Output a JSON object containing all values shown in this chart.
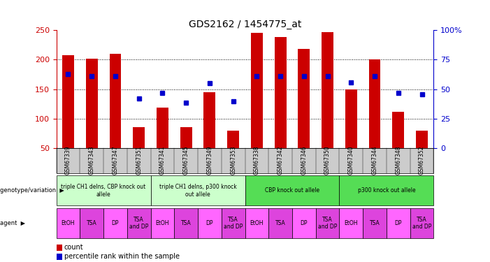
{
  "title": "GDS2162 / 1454775_at",
  "samples": [
    "GSM67339",
    "GSM67343",
    "GSM67347",
    "GSM67351",
    "GSM67341",
    "GSM67345",
    "GSM67349",
    "GSM67353",
    "GSM67338",
    "GSM67342",
    "GSM67346",
    "GSM67350",
    "GSM67340",
    "GSM67344",
    "GSM67348",
    "GSM67352"
  ],
  "counts": [
    208,
    201,
    210,
    85,
    119,
    85,
    145,
    80,
    245,
    238,
    218,
    247,
    150,
    200,
    112,
    80
  ],
  "percentiles": [
    175,
    172,
    172,
    134,
    144,
    127,
    160,
    129,
    172,
    172,
    172,
    172,
    161,
    172,
    143,
    141
  ],
  "ylim_left": [
    50,
    250
  ],
  "ylim_right": [
    0,
    100
  ],
  "yticks_left": [
    50,
    100,
    150,
    200,
    250
  ],
  "yticks_right": [
    0,
    25,
    50,
    75,
    100
  ],
  "genotype_groups": [
    {
      "label": "triple CH1 delns, CBP knock out\nallele",
      "start": 0,
      "end": 4,
      "color": "#ccffcc"
    },
    {
      "label": "triple CH1 delns, p300 knock\nout allele",
      "start": 4,
      "end": 8,
      "color": "#ccffcc"
    },
    {
      "label": "CBP knock out allele",
      "start": 8,
      "end": 12,
      "color": "#55dd55"
    },
    {
      "label": "p300 knock out allele",
      "start": 12,
      "end": 16,
      "color": "#55dd55"
    }
  ],
  "agent_labels": [
    "EtOH",
    "TSA",
    "DP",
    "TSA\nand DP",
    "EtOH",
    "TSA",
    "DP",
    "TSA\nand DP",
    "EtOH",
    "TSA",
    "DP",
    "TSA\nand DP",
    "EtOH",
    "TSA",
    "DP",
    "TSA\nand DP"
  ],
  "bar_color": "#cc0000",
  "dot_color": "#0000cc",
  "background_color": "#ffffff",
  "plot_bg_color": "#ffffff",
  "left_axis_color": "#cc0000",
  "right_axis_color": "#0000cc",
  "sample_bg_color": "#cccccc",
  "agent_color_1": "#ff66ff",
  "agent_color_2": "#dd44dd"
}
